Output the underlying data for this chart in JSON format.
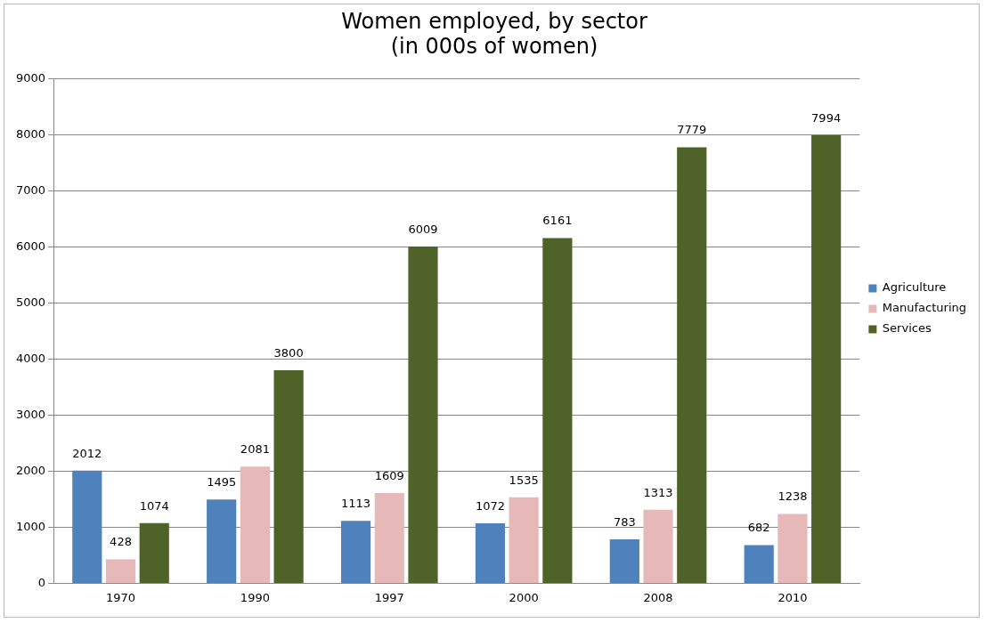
{
  "chart_data": {
    "type": "bar",
    "title": "Women employed, by sector\n(in 000s of women)",
    "categories": [
      "1970",
      "1990",
      "1997",
      "2000",
      "2008",
      "2010"
    ],
    "series": [
      {
        "name": "Agriculture",
        "color": "#4f81bd",
        "values": [
          2012,
          1495,
          1113,
          1072,
          783,
          682
        ]
      },
      {
        "name": "Manufacturing",
        "color": "#e6b9b8",
        "values": [
          428,
          2081,
          1609,
          1535,
          1313,
          1238
        ]
      },
      {
        "name": "Services",
        "color": "#4f6228",
        "values": [
          1074,
          3800,
          6009,
          6161,
          7779,
          7994
        ]
      }
    ],
    "ylim": [
      0,
      9000
    ],
    "yticks": [
      0,
      1000,
      2000,
      3000,
      4000,
      5000,
      6000,
      7000,
      8000,
      9000
    ],
    "grid": "y",
    "legend": "right",
    "data_labels": true
  }
}
